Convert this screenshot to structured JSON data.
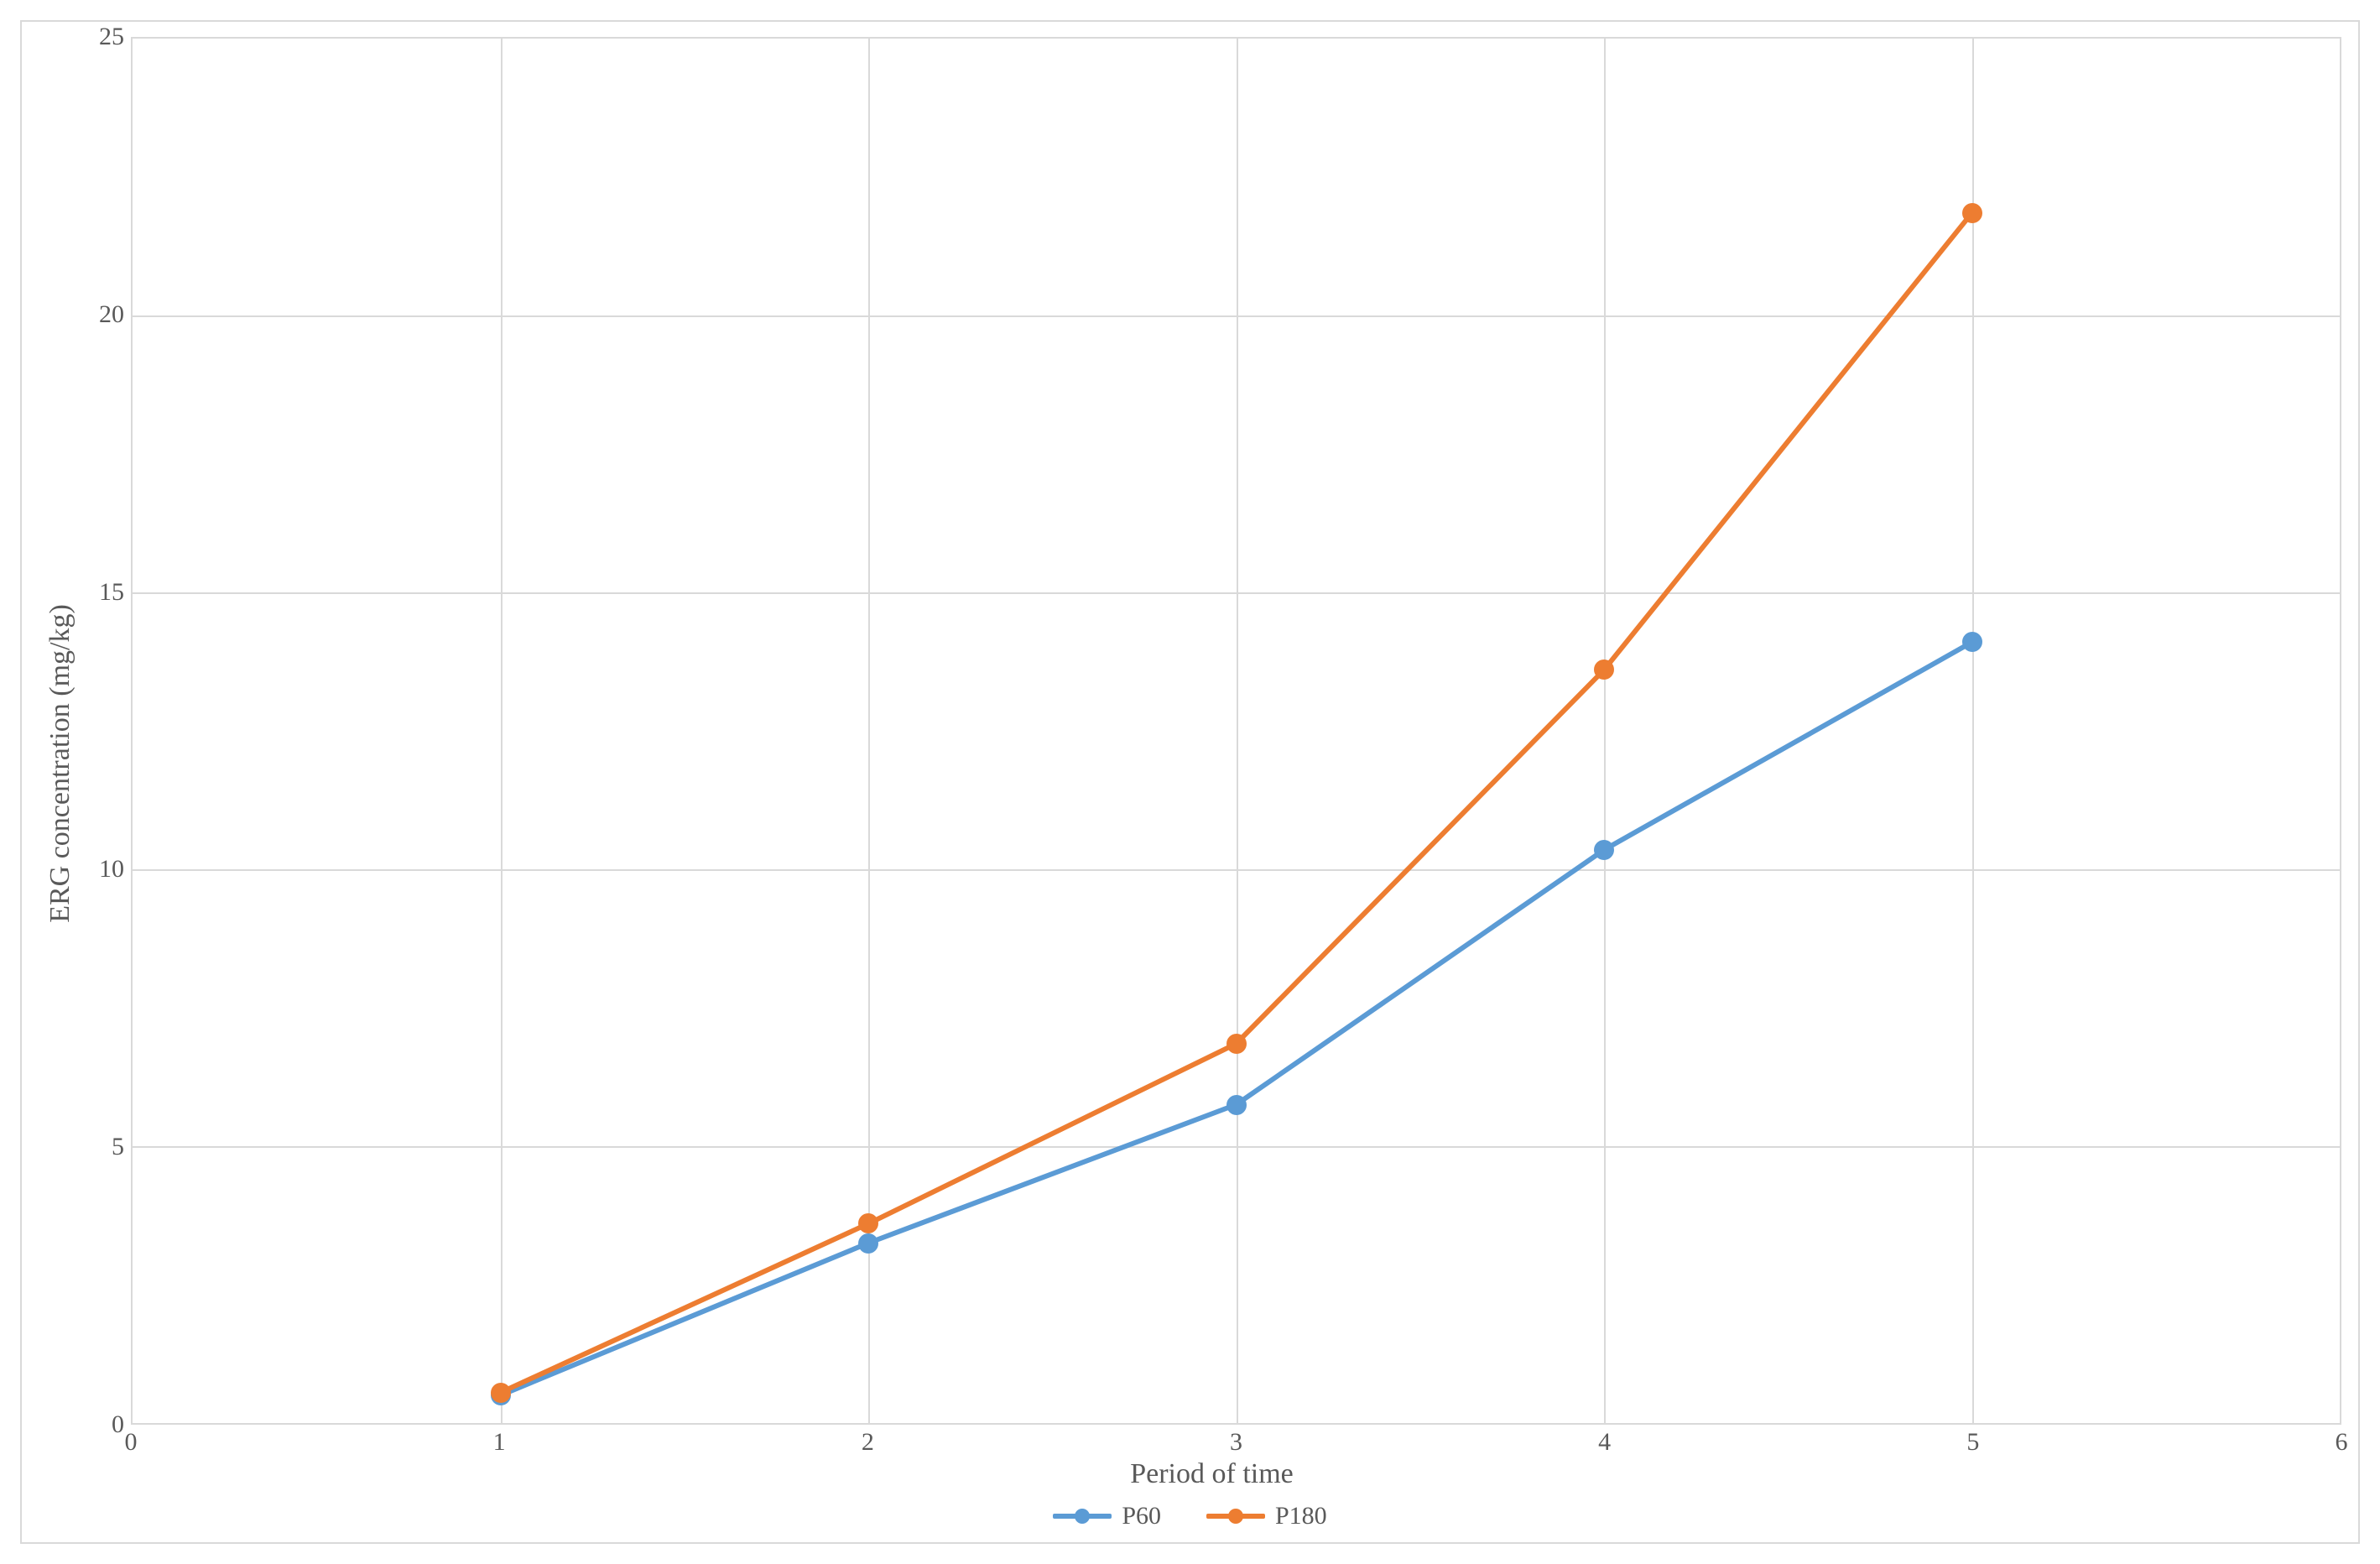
{
  "chart": {
    "type": "line",
    "background_color": "#ffffff",
    "outer_border_color": "#d9d9d9",
    "grid_color": "#d9d9d9",
    "text_color": "#595959",
    "font_family": "Times New Roman",
    "x_axis": {
      "label": "Period of time",
      "label_fontsize": 34,
      "tick_fontsize": 30,
      "min": 0,
      "max": 6,
      "tick_step": 1,
      "ticks": [
        0,
        1,
        2,
        3,
        4,
        5,
        6
      ]
    },
    "y_axis": {
      "label": "ERG concentration (mg/kg)",
      "label_fontsize": 34,
      "tick_fontsize": 30,
      "min": 0,
      "max": 25,
      "tick_step": 5,
      "ticks": [
        0,
        5,
        10,
        15,
        20,
        25
      ]
    },
    "line_width": 6,
    "marker_radius": 12,
    "series": [
      {
        "name": "P60",
        "color": "#5b9bd5",
        "x": [
          1,
          2,
          3,
          4,
          5
        ],
        "y": [
          0.5,
          3.25,
          5.75,
          10.35,
          14.1
        ]
      },
      {
        "name": "P180",
        "color": "#ed7d31",
        "x": [
          1,
          2,
          3,
          4,
          5
        ],
        "y": [
          0.55,
          3.6,
          6.85,
          13.6,
          21.85
        ]
      }
    ],
    "legend": {
      "position": "bottom",
      "items": [
        {
          "label": "P60",
          "color": "#5b9bd5"
        },
        {
          "label": "P180",
          "color": "#ed7d31"
        }
      ]
    }
  }
}
